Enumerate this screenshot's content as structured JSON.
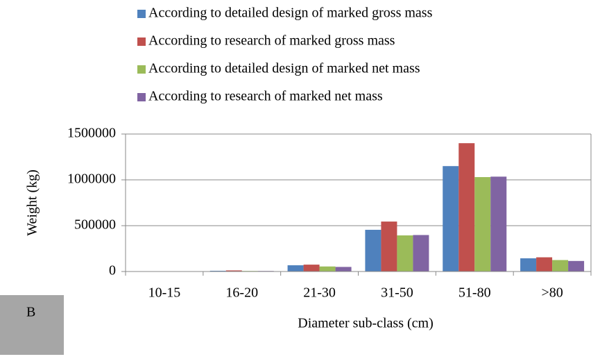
{
  "chart_data": {
    "type": "bar",
    "panel_label": "B",
    "x_label": "Diameter sub-class (cm)",
    "y_label": "Weight (kg)",
    "categories": [
      "10-15",
      "16-20",
      "21-30",
      "31-50",
      "51-80",
      ">80"
    ],
    "series": [
      {
        "name": "According to detailed design of marked gross mass",
        "color": "#4f81bd",
        "values": [
          2000,
          8000,
          68000,
          455000,
          1150000,
          144000
        ]
      },
      {
        "name": "According to research of marked gross mass",
        "color": "#c0504d",
        "values": [
          3000,
          12000,
          75000,
          545000,
          1400000,
          155000
        ]
      },
      {
        "name": "According to detailed design of marked net mass",
        "color": "#9bbb59",
        "values": [
          1500,
          6000,
          55000,
          394000,
          1030000,
          125000
        ]
      },
      {
        "name": "According to research of marked net mass",
        "color": "#8064a2",
        "values": [
          1500,
          6000,
          50000,
          398000,
          1035000,
          115000
        ]
      }
    ],
    "ylim": [
      0,
      1500000
    ],
    "yticks": [
      0,
      500000,
      1000000,
      1500000
    ],
    "grid": true
  }
}
